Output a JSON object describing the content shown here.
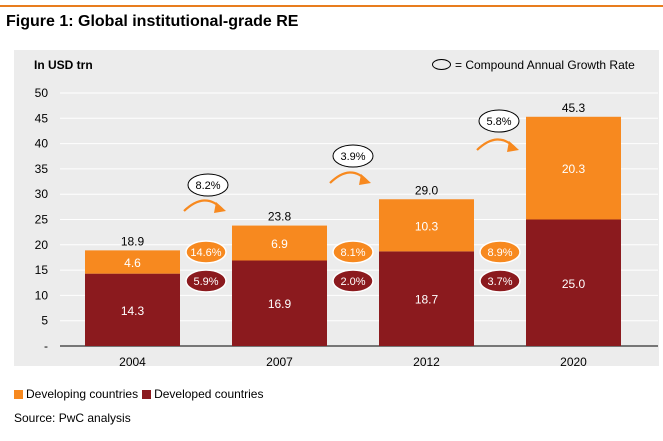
{
  "figure_title": "Figure 1: Global institutional-grade RE",
  "unit_label": "In USD trn",
  "cagr_key_label": "= Compound Annual Growth Rate",
  "source": "Source: PwC analysis",
  "colors": {
    "accent": "#e87d1e",
    "developing": "#f7891f",
    "developed": "#8b1a1e",
    "panel": "#ececec"
  },
  "chart_data": {
    "type": "bar",
    "stacked": true,
    "categories": [
      "2004",
      "2007",
      "2012",
      "2020"
    ],
    "series": [
      {
        "name": "Developed countries",
        "values": [
          14.3,
          16.9,
          18.7,
          25.0
        ],
        "color": "#8b1a1e"
      },
      {
        "name": "Developing countries",
        "values": [
          4.6,
          6.9,
          10.3,
          20.3
        ],
        "color": "#f7891f"
      }
    ],
    "totals": [
      "18.9",
      "23.8",
      "29.0",
      "45.3"
    ],
    "value_labels": {
      "developed": [
        "14.3",
        "16.9",
        "18.7",
        "25.0"
      ],
      "developing": [
        "4.6",
        "6.9",
        "10.3",
        "20.3"
      ]
    },
    "ylim": [
      0,
      50
    ],
    "yticks": [
      0,
      5,
      10,
      15,
      20,
      25,
      30,
      35,
      40,
      45,
      50
    ],
    "ytick_labels": [
      "-",
      "5",
      "10",
      "15",
      "20",
      "25",
      "30",
      "35",
      "40",
      "45",
      "50"
    ],
    "grid": true,
    "legend_position": "bottom-left",
    "cagr_total": [
      "8.2%",
      "3.9%",
      "5.8%"
    ],
    "cagr_developing": [
      "14.6%",
      "8.1%",
      "8.9%"
    ],
    "cagr_developed": [
      "5.9%",
      "2.0%",
      "3.7%"
    ]
  }
}
